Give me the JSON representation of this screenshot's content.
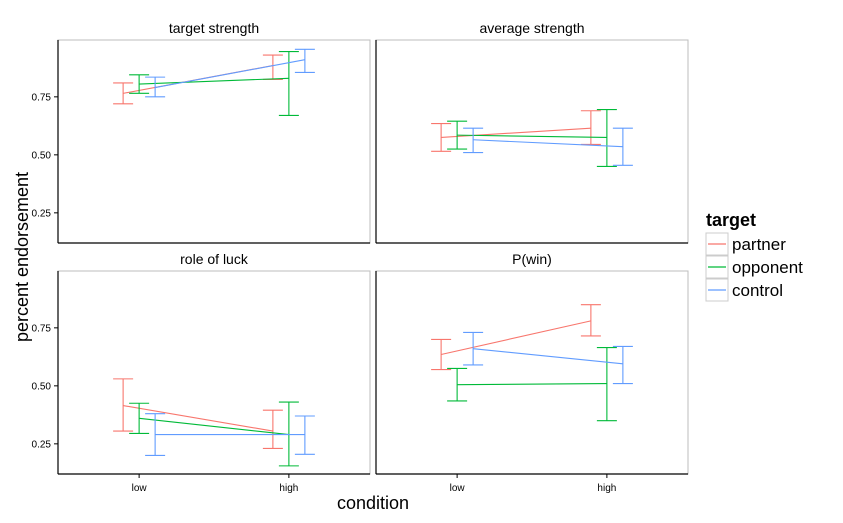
{
  "chart_data": {
    "type": "line",
    "layout": "facet-grid-2x2",
    "xlabel": "condition",
    "ylabel": "percent endorsement",
    "categories": [
      "low",
      "high"
    ],
    "ylim": [
      0.12,
      0.995
    ],
    "yticks": [
      0.25,
      0.5,
      0.75
    ],
    "ytick_labels": [
      "0.25",
      "0.50",
      "0.75"
    ],
    "grid": false,
    "legend": {
      "title": "target",
      "placement": "right",
      "entries": [
        {
          "name": "partner",
          "color": "#F8766D"
        },
        {
          "name": "opponent",
          "color": "#00BA38"
        },
        {
          "name": "control",
          "color": "#619CFF"
        }
      ]
    },
    "panels": [
      {
        "title": "target strength",
        "series": [
          {
            "name": "partner",
            "values": [
              0.765,
              0.885
            ],
            "lower": [
              0.72,
              0.825
            ],
            "upper": [
              0.81,
              0.93
            ]
          },
          {
            "name": "opponent",
            "values": [
              0.805,
              0.83
            ],
            "lower": [
              0.765,
              0.67
            ],
            "upper": [
              0.845,
              0.945
            ]
          },
          {
            "name": "control",
            "values": [
              0.79,
              0.91
            ],
            "lower": [
              0.75,
              0.855
            ],
            "upper": [
              0.835,
              0.955
            ]
          }
        ]
      },
      {
        "title": "average strength",
        "series": [
          {
            "name": "partner",
            "values": [
              0.575,
              0.615
            ],
            "lower": [
              0.515,
              0.545
            ],
            "upper": [
              0.635,
              0.69
            ]
          },
          {
            "name": "opponent",
            "values": [
              0.585,
              0.575
            ],
            "lower": [
              0.525,
              0.45
            ],
            "upper": [
              0.645,
              0.695
            ]
          },
          {
            "name": "control",
            "values": [
              0.565,
              0.535
            ],
            "lower": [
              0.51,
              0.455
            ],
            "upper": [
              0.615,
              0.615
            ]
          }
        ]
      },
      {
        "title": "role of luck",
        "series": [
          {
            "name": "partner",
            "values": [
              0.415,
              0.305
            ],
            "lower": [
              0.305,
              0.23
            ],
            "upper": [
              0.53,
              0.395
            ]
          },
          {
            "name": "opponent",
            "values": [
              0.36,
              0.29
            ],
            "lower": [
              0.295,
              0.155
            ],
            "upper": [
              0.425,
              0.43
            ]
          },
          {
            "name": "control",
            "values": [
              0.29,
              0.29
            ],
            "lower": [
              0.2,
              0.205
            ],
            "upper": [
              0.38,
              0.37
            ]
          }
        ]
      },
      {
        "title": "P(win)",
        "series": [
          {
            "name": "partner",
            "values": [
              0.635,
              0.78
            ],
            "lower": [
              0.57,
              0.715
            ],
            "upper": [
              0.7,
              0.85
            ]
          },
          {
            "name": "opponent",
            "values": [
              0.505,
              0.51
            ],
            "lower": [
              0.435,
              0.35
            ],
            "upper": [
              0.575,
              0.665
            ]
          },
          {
            "name": "control",
            "values": [
              0.66,
              0.595
            ],
            "lower": [
              0.59,
              0.51
            ],
            "upper": [
              0.73,
              0.67
            ]
          }
        ]
      }
    ]
  }
}
